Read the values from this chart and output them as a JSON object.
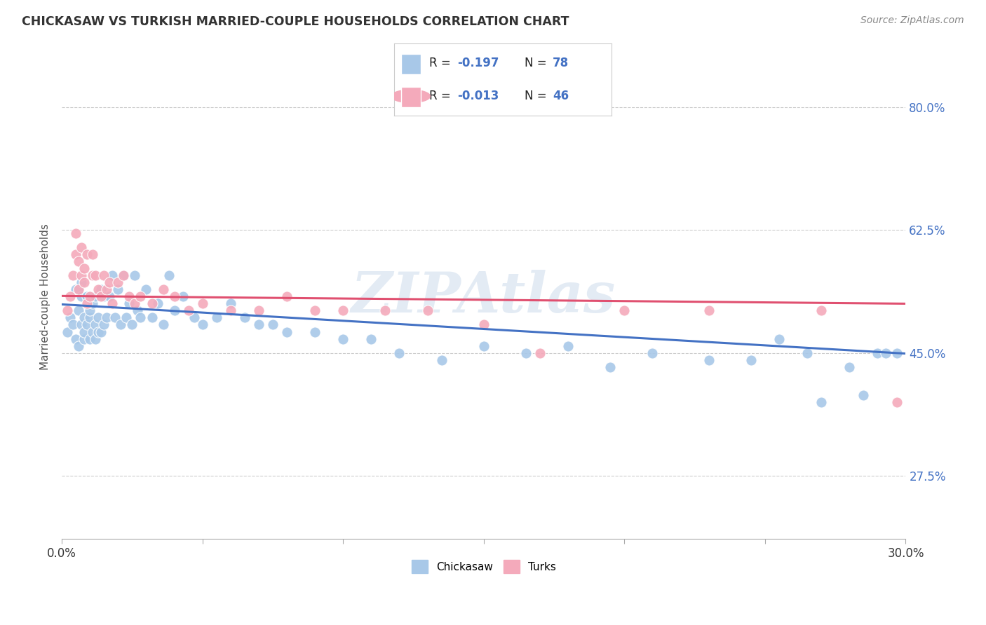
{
  "title": "CHICKASAW VS TURKISH MARRIED-COUPLE HOUSEHOLDS CORRELATION CHART",
  "source": "Source: ZipAtlas.com",
  "ylabel": "Married-couple Households",
  "yticks": [
    "80.0%",
    "62.5%",
    "45.0%",
    "27.5%"
  ],
  "ytick_vals": [
    0.8,
    0.625,
    0.45,
    0.275
  ],
  "xlim": [
    0.0,
    0.3
  ],
  "ylim": [
    0.185,
    0.875
  ],
  "chickasaw_color": "#A8C8E8",
  "turks_color": "#F4AABB",
  "chickasaw_line_color": "#4472C4",
  "turks_line_color": "#E05070",
  "background_color": "#ffffff",
  "grid_color": "#cccccc",
  "watermark": "ZIPAtlas",
  "legend_box_color": "#f0f0f0",
  "chickasaw_x": [
    0.002,
    0.003,
    0.004,
    0.005,
    0.005,
    0.006,
    0.006,
    0.006,
    0.007,
    0.007,
    0.007,
    0.008,
    0.008,
    0.008,
    0.009,
    0.009,
    0.01,
    0.01,
    0.01,
    0.011,
    0.011,
    0.012,
    0.012,
    0.012,
    0.013,
    0.013,
    0.014,
    0.014,
    0.015,
    0.015,
    0.016,
    0.017,
    0.018,
    0.019,
    0.02,
    0.021,
    0.022,
    0.023,
    0.024,
    0.025,
    0.026,
    0.027,
    0.028,
    0.03,
    0.032,
    0.034,
    0.036,
    0.038,
    0.04,
    0.043,
    0.047,
    0.05,
    0.055,
    0.06,
    0.065,
    0.07,
    0.075,
    0.08,
    0.09,
    0.1,
    0.11,
    0.12,
    0.135,
    0.15,
    0.165,
    0.18,
    0.195,
    0.21,
    0.23,
    0.245,
    0.255,
    0.265,
    0.27,
    0.28,
    0.285,
    0.29,
    0.293,
    0.297
  ],
  "chickasaw_y": [
    0.48,
    0.5,
    0.49,
    0.54,
    0.47,
    0.46,
    0.51,
    0.54,
    0.55,
    0.49,
    0.53,
    0.47,
    0.5,
    0.48,
    0.53,
    0.49,
    0.5,
    0.47,
    0.51,
    0.52,
    0.48,
    0.53,
    0.49,
    0.47,
    0.48,
    0.5,
    0.54,
    0.48,
    0.53,
    0.49,
    0.5,
    0.53,
    0.56,
    0.5,
    0.54,
    0.49,
    0.56,
    0.5,
    0.52,
    0.49,
    0.56,
    0.51,
    0.5,
    0.54,
    0.5,
    0.52,
    0.49,
    0.56,
    0.51,
    0.53,
    0.5,
    0.49,
    0.5,
    0.52,
    0.5,
    0.49,
    0.49,
    0.48,
    0.48,
    0.47,
    0.47,
    0.45,
    0.44,
    0.46,
    0.45,
    0.46,
    0.43,
    0.45,
    0.44,
    0.44,
    0.47,
    0.45,
    0.38,
    0.43,
    0.39,
    0.45,
    0.45,
    0.45
  ],
  "turks_x": [
    0.002,
    0.003,
    0.004,
    0.005,
    0.005,
    0.006,
    0.006,
    0.007,
    0.007,
    0.008,
    0.008,
    0.009,
    0.009,
    0.01,
    0.011,
    0.011,
    0.012,
    0.013,
    0.014,
    0.015,
    0.016,
    0.017,
    0.018,
    0.02,
    0.022,
    0.024,
    0.026,
    0.028,
    0.032,
    0.036,
    0.04,
    0.045,
    0.05,
    0.06,
    0.07,
    0.08,
    0.09,
    0.1,
    0.115,
    0.13,
    0.15,
    0.17,
    0.2,
    0.23,
    0.27,
    0.297
  ],
  "turks_y": [
    0.51,
    0.53,
    0.56,
    0.62,
    0.59,
    0.54,
    0.58,
    0.6,
    0.56,
    0.55,
    0.57,
    0.59,
    0.52,
    0.53,
    0.56,
    0.59,
    0.56,
    0.54,
    0.53,
    0.56,
    0.54,
    0.55,
    0.52,
    0.55,
    0.56,
    0.53,
    0.52,
    0.53,
    0.52,
    0.54,
    0.53,
    0.51,
    0.52,
    0.51,
    0.51,
    0.53,
    0.51,
    0.51,
    0.51,
    0.51,
    0.49,
    0.45,
    0.51,
    0.51,
    0.51,
    0.38
  ],
  "chickasaw_trendline": [
    0.519,
    0.449
  ],
  "turks_trendline": [
    0.531,
    0.52
  ],
  "xtick_positions": [
    0.0,
    0.05,
    0.1,
    0.15,
    0.2,
    0.25,
    0.3
  ],
  "xtick_labels": [
    "0.0%",
    "",
    "",
    "",
    "",
    "",
    "30.0%"
  ]
}
